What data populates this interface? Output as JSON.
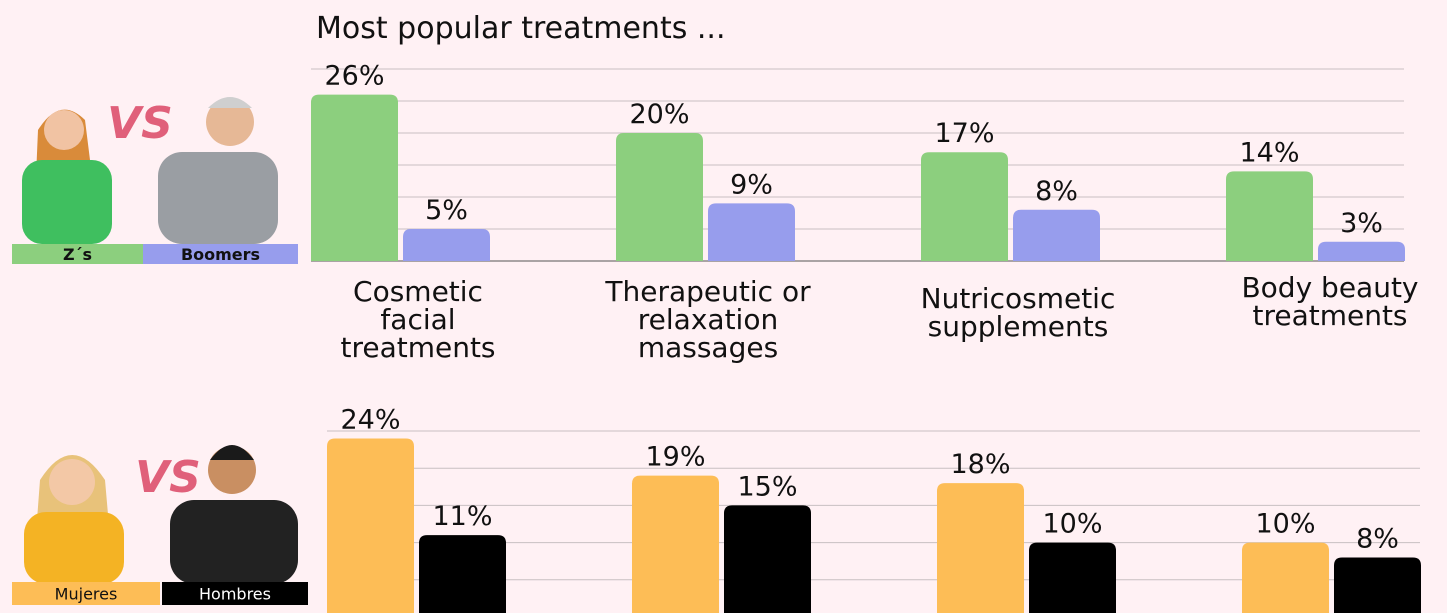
{
  "chart_data": [
    {
      "type": "bar",
      "title": "Most popular treatments ...",
      "badge": "VS",
      "categories": [
        "Cosmetic\nfacial\ntreatments",
        "Therapeutic or\nrelaxation\nmassages",
        "Nutricosmetic\nsupplements",
        "Body beauty\ntreatments"
      ],
      "series": [
        {
          "name": "Z´s",
          "color": "#8ccf7e",
          "values": [
            26,
            20,
            17,
            14
          ],
          "value_labels": [
            "26%",
            "20%",
            "17%",
            "14%"
          ]
        },
        {
          "name": "Boomers",
          "color": "#979ded",
          "values": [
            5,
            9,
            8,
            3
          ],
          "value_labels": [
            "5%",
            "9%",
            "8%",
            "3%"
          ]
        }
      ],
      "ylim": [
        0,
        30
      ],
      "yticks": [
        0,
        5,
        10,
        15,
        20,
        25,
        30
      ],
      "grid": true
    },
    {
      "type": "bar",
      "badge": "VS",
      "series": [
        {
          "name": "Mujeres",
          "color": "#fdbd56",
          "values": [
            24,
            19,
            18,
            10
          ],
          "value_labels": [
            "24%",
            "19%",
            "18%",
            "10%"
          ]
        },
        {
          "name": "Hombres",
          "color": "#000000",
          "values": [
            11,
            15,
            10,
            8
          ],
          "value_labels": [
            "11%",
            "15%",
            "10%",
            "8%"
          ]
        }
      ],
      "ylim": [
        0,
        25
      ],
      "yticks": [
        0,
        5,
        10,
        15,
        20,
        25
      ],
      "grid": true
    }
  ]
}
